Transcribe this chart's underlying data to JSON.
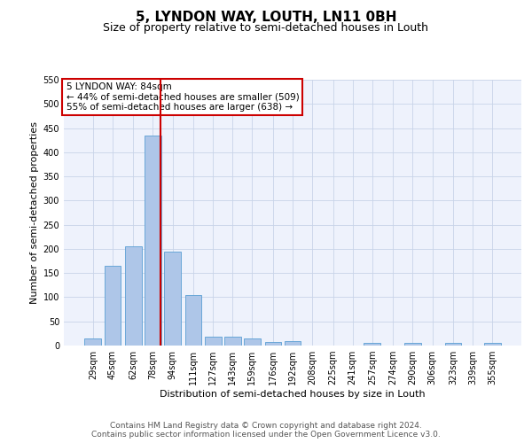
{
  "title1": "5, LYNDON WAY, LOUTH, LN11 0BH",
  "title2": "Size of property relative to semi-detached houses in Louth",
  "xlabel": "Distribution of semi-detached houses by size in Louth",
  "ylabel": "Number of semi-detached properties",
  "footnote1": "Contains HM Land Registry data © Crown copyright and database right 2024.",
  "footnote2": "Contains public sector information licensed under the Open Government Licence v3.0.",
  "annotation_line1": "5 LYNDON WAY: 84sqm",
  "annotation_line2": "← 44% of semi-detached houses are smaller (509)",
  "annotation_line3": "55% of semi-detached houses are larger (638) →",
  "property_size": 84,
  "bar_labels": [
    "29sqm",
    "45sqm",
    "62sqm",
    "78sqm",
    "94sqm",
    "111sqm",
    "127sqm",
    "143sqm",
    "159sqm",
    "176sqm",
    "192sqm",
    "208sqm",
    "225sqm",
    "241sqm",
    "257sqm",
    "274sqm",
    "290sqm",
    "306sqm",
    "323sqm",
    "339sqm",
    "355sqm"
  ],
  "bar_values": [
    15,
    165,
    205,
    435,
    195,
    105,
    18,
    18,
    15,
    8,
    10,
    0,
    0,
    0,
    5,
    0,
    5,
    0,
    5,
    0,
    5
  ],
  "bar_centers": [
    29,
    45,
    62,
    78,
    94,
    111,
    127,
    143,
    159,
    176,
    192,
    208,
    225,
    241,
    257,
    274,
    290,
    306,
    323,
    339,
    355
  ],
  "bar_color": "#aec6e8",
  "bar_edge_color": "#5a9fd4",
  "vline_x": 84,
  "vline_color": "#cc0000",
  "ylim": [
    0,
    550
  ],
  "yticks": [
    0,
    50,
    100,
    150,
    200,
    250,
    300,
    350,
    400,
    450,
    500,
    550
  ],
  "bg_color": "#eef2fc",
  "grid_color": "#c8d4e8",
  "annotation_box_color": "#ffffff",
  "annotation_box_edge": "#cc0000",
  "title1_fontsize": 11,
  "title2_fontsize": 9,
  "axis_label_fontsize": 8,
  "tick_fontsize": 7,
  "annotation_fontsize": 7.5
}
